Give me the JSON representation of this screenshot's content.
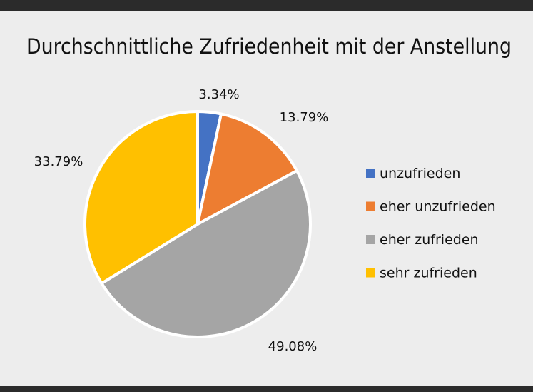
{
  "chart_data": {
    "type": "pie",
    "title": "Durchschnittliche Zufriedenheit mit der Anstellung",
    "categories": [
      "unzufrieden",
      "eher unzufrieden",
      "eher zufrieden",
      "sehr zufrieden"
    ],
    "values": [
      3.34,
      13.79,
      49.08,
      33.79
    ],
    "data_labels": [
      "3.34%",
      "13.79%",
      "49.08%",
      "33.79%"
    ],
    "colors": [
      "#4472c4",
      "#ed7d31",
      "#a5a5a5",
      "#ffc000"
    ],
    "start_angle": "12 o'clock, clockwise",
    "legend_position": "right"
  }
}
